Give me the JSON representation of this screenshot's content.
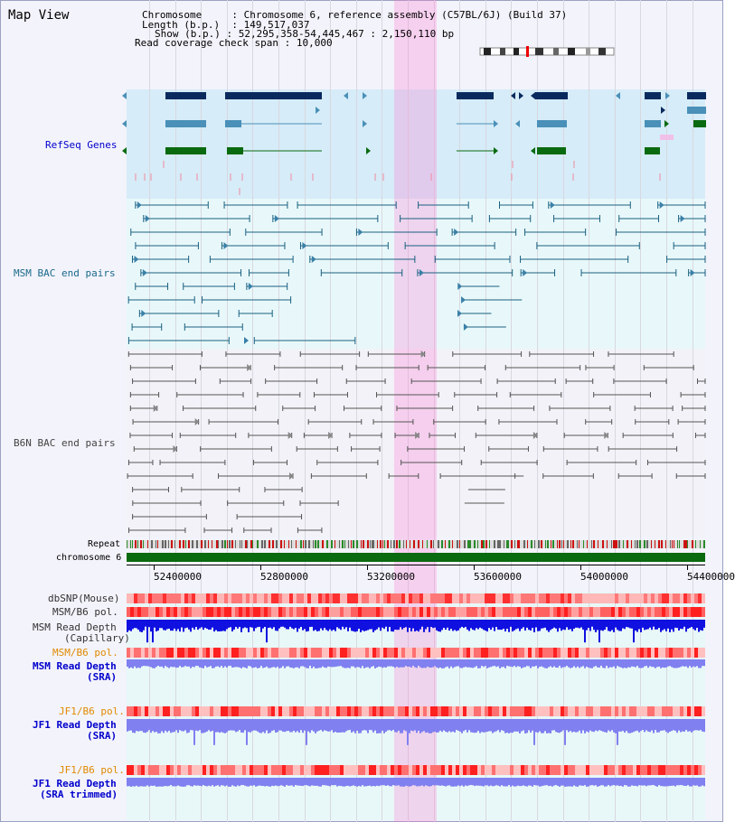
{
  "view_title": "Map View",
  "info": {
    "chromosome_label": "Chromosome",
    "chromosome_value": "Chromosome 6, reference assembly (C57BL/6J) (Build 37)",
    "length_label": "Length (b.p.)",
    "length_value": "149,517,037",
    "show_label": "Show (b.p.)",
    "show_value": "52,295,358-54,445,467 : 2,150,110 bp",
    "coverage_label": "Read coverage check span",
    "coverage_value": "10,000"
  },
  "tracks": {
    "refseq": "RefSeq Genes",
    "msm_bac": "MSM BAC end pairs",
    "b6n_bac": "B6N BAC end pairs",
    "repeat": "Repeat",
    "chromosome": "chromosome 6",
    "dbsnp": "dbSNP(Mouse)",
    "msm_b6_pol_1": "MSM/B6 pol.",
    "msm_read_depth_cap_1": "MSM Read Depth",
    "msm_read_depth_cap_2": "(Capillary)",
    "msm_b6_pol_2": "MSM/B6 pol.",
    "msm_read_depth_sra_1": "MSM Read Depth",
    "msm_read_depth_sra_2": "(SRA)",
    "jf1_b6_pol_1": "JF1/B6 pol.",
    "jf1_read_depth_1": "JF1 Read Depth",
    "jf1_read_depth_2": "(SRA)",
    "jf1_b6_pol_2": "JF1/B6 pol.",
    "jf1_read_depth_trim_1": "JF1 Read Depth",
    "jf1_read_depth_trim_2": "(SRA trimmed)"
  },
  "axis_ticks": [
    "52400000",
    "52800000",
    "53200000",
    "53600000",
    "54000000",
    "54400000"
  ],
  "colors": {
    "refseq_band": "#d6ecf8",
    "msm_band": "#e8f8fa",
    "b6n_band": "#f2f2f8",
    "highlight": "#f8c8ec",
    "gene_dark": "#0a2a5e",
    "gene_mid": "#4a90b8",
    "gene_green": "#0a6a10",
    "msm_line": "#1a6080",
    "b6n_line": "#555555",
    "label_blue": "#0000cc",
    "label_teal": "#1a6a8a",
    "label_orange": "#e08a00",
    "depth_capillary": "#1010e0",
    "depth_sra": "#8080f0"
  }
}
